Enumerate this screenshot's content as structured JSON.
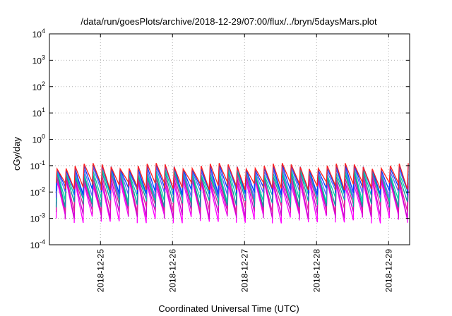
{
  "chart_data": {
    "type": "line",
    "title": "/data/run/goesPlots/archive/2018-12-29/07:00/flux/../bryn/5daysMars.plot",
    "xlabel": "Coordinated Universal Time (UTC)",
    "ylabel": "cGy/day",
    "yscale": "log",
    "ylim": [
      0.0001,
      10000
    ],
    "xlim": [
      "2018-12-24T07:00",
      "2018-12-29T07:00"
    ],
    "grid": true,
    "y_ticks": [
      {
        "base": "10",
        "exp": "-4",
        "value": 0.0001
      },
      {
        "base": "10",
        "exp": "-3",
        "value": 0.001
      },
      {
        "base": "10",
        "exp": "-2",
        "value": 0.01
      },
      {
        "base": "10",
        "exp": "-1",
        "value": 0.1
      },
      {
        "base": "10",
        "exp": "0",
        "value": 1
      },
      {
        "base": "10",
        "exp": "1",
        "value": 10
      },
      {
        "base": "10",
        "exp": "2",
        "value": 100
      },
      {
        "base": "10",
        "exp": "3",
        "value": 1000
      },
      {
        "base": "10",
        "exp": "4",
        "value": 10000
      }
    ],
    "x_ticks": [
      {
        "label": "2018-12-25",
        "value": "2018-12-25T00:00"
      },
      {
        "label": "2018-12-26",
        "value": "2018-12-26T00:00"
      },
      {
        "label": "2018-12-27",
        "value": "2018-12-27T00:00"
      },
      {
        "label": "2018-12-28",
        "value": "2018-12-28T00:00"
      },
      {
        "label": "2018-12-29",
        "value": "2018-12-29T00:00"
      }
    ],
    "cycle_hours": 3,
    "series": [
      {
        "color": "#ff00ff",
        "peak": 0.022,
        "trough": 0.001
      },
      {
        "color": "#cc00cc",
        "peak": 0.03,
        "trough": 0.0015
      },
      {
        "color": "#e0209a",
        "peak": 0.04,
        "trough": 0.0025
      },
      {
        "color": "#00a0a0",
        "peak": 0.05,
        "trough": 0.004
      },
      {
        "color": "#00d0a0",
        "peak": 0.06,
        "trough": 0.006
      },
      {
        "color": "#6060ff",
        "peak": 0.075,
        "trough": 0.009
      },
      {
        "color": "#0040ff",
        "peak": 0.09,
        "trough": 0.012
      },
      {
        "color": "#ff2020",
        "peak": 0.1,
        "trough": 0.018
      }
    ]
  }
}
